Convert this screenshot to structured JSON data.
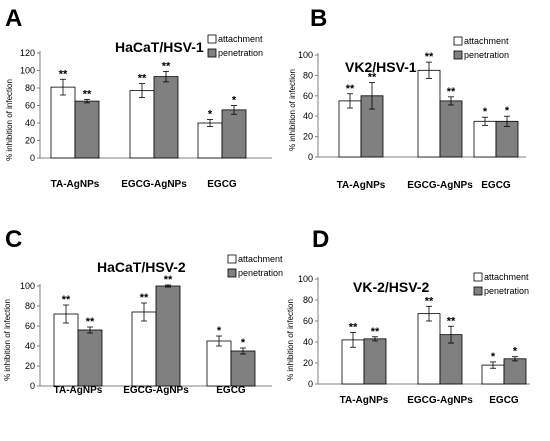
{
  "colors": {
    "attachment": "#ffffff",
    "penetration": "#808080",
    "stroke": "#000000"
  },
  "chart_data": [
    {
      "type": "bar",
      "panel": "A",
      "title": "HaCaT/HSV-1",
      "ylabel": "% inhibition of infection",
      "ylim": [
        0,
        120
      ],
      "yticks": [
        "0",
        "20",
        "40",
        "60",
        "80",
        "100",
        "120"
      ],
      "categories": [
        "TA-AgNPs",
        "EGCG-AgNPs",
        "EGCG"
      ],
      "legend": "top-right",
      "series": [
        {
          "name": "attachment",
          "values": [
            81,
            77,
            40
          ],
          "errors": [
            9,
            8,
            4
          ],
          "significance": [
            "**",
            "**",
            "*"
          ]
        },
        {
          "name": "penetration",
          "values": [
            65,
            93,
            55
          ],
          "errors": [
            2,
            6,
            5
          ],
          "significance": [
            "**",
            "**",
            "*"
          ]
        }
      ]
    },
    {
      "type": "bar",
      "panel": "B",
      "title": "VK2/HSV-1",
      "ylabel": "% inhibition of infection",
      "ylim": [
        0,
        100
      ],
      "yticks": [
        "0",
        "20",
        "40",
        "60",
        "80",
        "100"
      ],
      "categories": [
        "TA-AgNPs",
        "EGCG-AgNPs",
        "EGCG"
      ],
      "legend": "top-right",
      "series": [
        {
          "name": "attachment",
          "values": [
            55,
            85,
            35
          ],
          "errors": [
            7,
            8,
            4
          ],
          "significance": [
            "**",
            "**",
            "*"
          ]
        },
        {
          "name": "penetration",
          "values": [
            60,
            55,
            35
          ],
          "errors": [
            13,
            4,
            5
          ],
          "significance": [
            "**",
            "**",
            "*"
          ]
        }
      ]
    },
    {
      "type": "bar",
      "panel": "C",
      "title": "HaCaT/HSV-2",
      "ylabel": "% inhibition of infection",
      "ylim": [
        0,
        100
      ],
      "yticks": [
        "0",
        "20",
        "40",
        "60",
        "80",
        "100"
      ],
      "categories": [
        "TA-AgNPs",
        "EGCG-AgNPs",
        "EGCG"
      ],
      "legend": "top-right",
      "series": [
        {
          "name": "attachment",
          "values": [
            72,
            74,
            45
          ],
          "errors": [
            9,
            9,
            5
          ],
          "significance": [
            "**",
            "**",
            "*"
          ]
        },
        {
          "name": "penetration",
          "values": [
            56,
            100,
            35
          ],
          "errors": [
            3,
            1,
            3
          ],
          "significance": [
            "**",
            "**",
            "*"
          ]
        }
      ]
    },
    {
      "type": "bar",
      "panel": "D",
      "title": "VK-2/HSV-2",
      "ylabel": "% inhibition of infection",
      "ylim": [
        0,
        100
      ],
      "yticks": [
        "0",
        "20",
        "40",
        "60",
        "80",
        "100"
      ],
      "categories": [
        "TA-AgNPs",
        "EGCG-AgNPs",
        "EGCG"
      ],
      "legend": "top-right",
      "series": [
        {
          "name": "attachment",
          "values": [
            42,
            67,
            18
          ],
          "errors": [
            7,
            7,
            3
          ],
          "significance": [
            "**",
            "**",
            "*"
          ]
        },
        {
          "name": "penetration",
          "values": [
            43,
            47,
            24
          ],
          "errors": [
            2,
            8,
            2
          ],
          "significance": [
            "**",
            "**",
            "*"
          ]
        }
      ]
    }
  ]
}
